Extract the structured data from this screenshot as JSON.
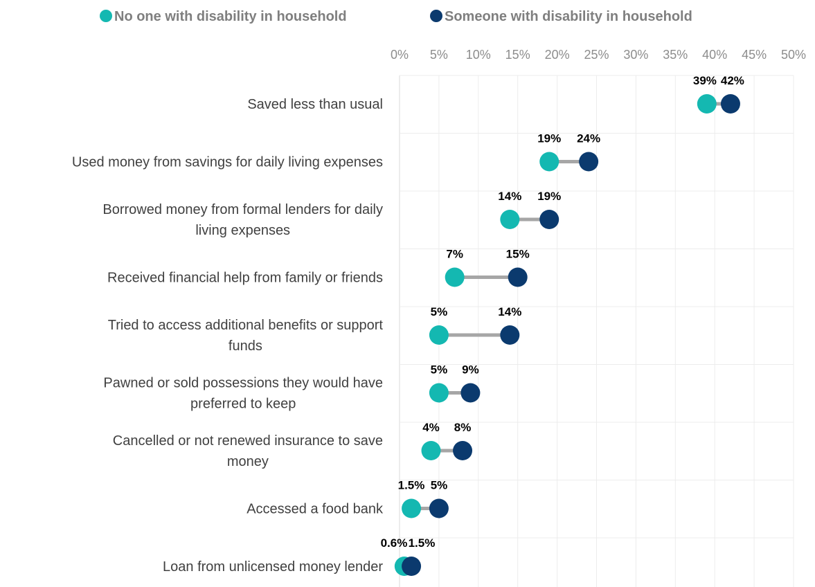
{
  "chart_data": {
    "type": "dumbbell",
    "xlim": [
      0,
      50
    ],
    "x_ticks": [
      0,
      5,
      10,
      15,
      20,
      25,
      30,
      35,
      40,
      45,
      50
    ],
    "x_tick_labels": [
      "0%",
      "5%",
      "10%",
      "15%",
      "20%",
      "25%",
      "30%",
      "35%",
      "40%",
      "45%",
      "50%"
    ],
    "grid": true,
    "legend_position": "top",
    "series": [
      {
        "name": "No one with disability in household",
        "color": "#14b8b1"
      },
      {
        "name": "Someone with disability in household",
        "color": "#0b3a6e"
      }
    ],
    "connector_color": "#a6a6a6",
    "rows": [
      {
        "label_lines": [
          "Saved less than usual"
        ],
        "values": [
          39,
          42
        ],
        "value_labels": [
          "39%",
          "42%"
        ]
      },
      {
        "label_lines": [
          "Used money from savings for daily living expenses"
        ],
        "values": [
          19,
          24
        ],
        "value_labels": [
          "19%",
          "24%"
        ]
      },
      {
        "label_lines": [
          "Borrowed money from formal lenders for daily",
          "living expenses"
        ],
        "values": [
          14,
          19
        ],
        "value_labels": [
          "14%",
          "19%"
        ]
      },
      {
        "label_lines": [
          "Received financial help from family or friends"
        ],
        "values": [
          7,
          15
        ],
        "value_labels": [
          "7%",
          "15%"
        ]
      },
      {
        "label_lines": [
          "Tried to access additional benefits or support",
          "funds"
        ],
        "values": [
          5,
          14
        ],
        "value_labels": [
          "5%",
          "14%"
        ]
      },
      {
        "label_lines": [
          "Pawned or sold possessions they would have",
          "preferred to keep"
        ],
        "values": [
          5,
          9
        ],
        "value_labels": [
          "5%",
          "9%"
        ]
      },
      {
        "label_lines": [
          "Cancelled or not renewed insurance to save",
          "money"
        ],
        "values": [
          4,
          8
        ],
        "value_labels": [
          "4%",
          "8%"
        ]
      },
      {
        "label_lines": [
          "Accessed a food bank"
        ],
        "values": [
          1.5,
          5
        ],
        "value_labels": [
          "1.5%",
          "5%"
        ]
      },
      {
        "label_lines": [
          "Loan from unlicensed money lender"
        ],
        "values": [
          0.6,
          1.5
        ],
        "value_labels": [
          "0.6%",
          "1.5%"
        ]
      }
    ]
  }
}
